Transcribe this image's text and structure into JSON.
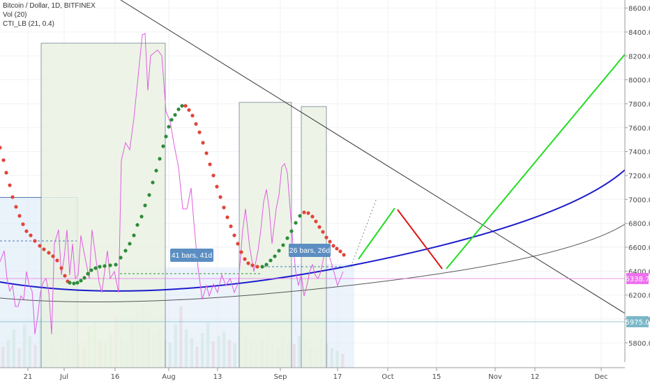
{
  "legend": {
    "symbol": "Bitcoin / Dollar, 1D, BITFINEX",
    "vol": "Vol (20)",
    "cti": "CTI_LB (21, 0.4)"
  },
  "colors": {
    "dots_up": "#2e8b3a",
    "dots_down": "#e0443a",
    "curve_blue": "#1a1acc",
    "curve_gray": "#555555",
    "indicator": "#e05ce0",
    "green_proj": "#22dd22",
    "red_proj": "#e01515",
    "price_label_pink": "#f070f0",
    "price_label_teal": "#7ab8c8",
    "bars_box": "#eaf3e3",
    "measure_box": "#dce9f7"
  },
  "price_labels": {
    "current": "6338.7",
    "level": "5975.0"
  },
  "measure_labels": [
    "41 bars, 41d",
    "26 bars, 26d"
  ],
  "chart_data": {
    "type": "line",
    "title": "Bitcoin / Dollar, 1D, BITFINEX",
    "y_ticks": [
      "8600.0",
      "8400.0",
      "8200.0",
      "8000.0",
      "7800.0",
      "7600.0",
      "7400.0",
      "7200.0",
      "7000.0",
      "6800.0",
      "6600.0",
      "6400.0",
      "6200.0",
      "6000.0",
      "5800.0"
    ],
    "x_ticks": [
      "21",
      "Jul",
      "16",
      "Aug",
      "13",
      "Sep",
      "17",
      "Oct",
      "15",
      "Nov",
      "12",
      "Dec"
    ],
    "ylim": [
      5600,
      8700
    ],
    "lines": {
      "descending_trendline": [
        [
          -8,
          8830
        ],
        [
          116,
          6040
        ]
      ],
      "blue_parabola": {
        "from": [
          0,
          6330
        ],
        "vertex": [
          25,
          6180
        ],
        "to": [
          116,
          7240
        ]
      },
      "gray_curve": {
        "from": [
          0,
          6130
        ],
        "vertex": [
          25,
          6120
        ],
        "to": [
          116,
          6790
        ]
      },
      "green_projection_1": [
        [
          66,
          6490
        ],
        [
          73,
          6940
        ]
      ],
      "red_projection": [
        [
          73,
          6930
        ],
        [
          82,
          6420
        ]
      ],
      "green_projection_2": [
        [
          82,
          6420
        ],
        [
          116,
          8200
        ]
      ]
    },
    "dots": {
      "green": [
        [
          12,
          6300
        ],
        [
          14,
          6300
        ],
        [
          16,
          6370
        ],
        [
          18,
          6420
        ],
        [
          20,
          6440
        ],
        [
          22,
          6440
        ],
        [
          24,
          6560
        ],
        [
          26,
          6780
        ],
        [
          28,
          7030
        ],
        [
          30,
          7440
        ],
        [
          32,
          7780
        ],
        [
          44,
          6400
        ],
        [
          48,
          6390
        ],
        [
          52,
          6520
        ],
        [
          54,
          6770
        ],
        [
          56,
          6880
        ]
      ],
      "red": [
        [
          0,
          7400
        ],
        [
          2,
          7120
        ],
        [
          4,
          6870
        ],
        [
          6,
          6680
        ],
        [
          8,
          6520
        ],
        [
          10,
          6380
        ],
        [
          34,
          7720
        ],
        [
          36,
          7420
        ],
        [
          38,
          7120
        ],
        [
          40,
          6820
        ],
        [
          42,
          6560
        ],
        [
          58,
          6850
        ],
        [
          60,
          6720
        ],
        [
          62,
          6600
        ],
        [
          64,
          6540
        ]
      ]
    },
    "indicator_values": [
      [
        0,
        6360
      ],
      [
        2,
        6580
      ],
      [
        4,
        6360
      ],
      [
        6,
        6220
      ],
      [
        8,
        5920
      ],
      [
        10,
        5900
      ],
      [
        12,
        6580
      ],
      [
        14,
        6440
      ],
      [
        16,
        6770
      ],
      [
        18,
        6450
      ],
      [
        20,
        6200
      ],
      [
        22,
        7300
      ],
      [
        24,
        7500
      ],
      [
        26,
        8350
      ],
      [
        28,
        8100
      ],
      [
        30,
        7920
      ],
      [
        32,
        7500
      ],
      [
        34,
        6850
      ],
      [
        36,
        6250
      ],
      [
        38,
        6200
      ],
      [
        40,
        6450
      ],
      [
        42,
        6280
      ],
      [
        44,
        6750
      ],
      [
        46,
        7050
      ],
      [
        48,
        6780
      ],
      [
        50,
        7250
      ],
      [
        52,
        6300
      ],
      [
        54,
        6100
      ],
      [
        56,
        6370
      ],
      [
        58,
        6280
      ],
      [
        60,
        6450
      ],
      [
        62,
        6550
      ],
      [
        64,
        6230
      ]
    ],
    "volume_note": "Vol (20)"
  }
}
